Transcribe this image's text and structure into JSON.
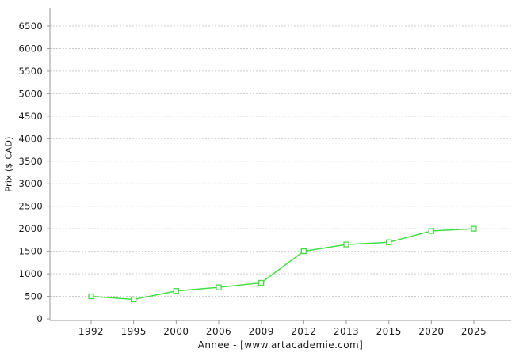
{
  "chart_data": {
    "type": "line",
    "categories": [
      "1992",
      "1995",
      "2000",
      "2006",
      "2009",
      "2012",
      "2013",
      "2015",
      "2020",
      "2025"
    ],
    "series": [
      {
        "name": "Prix",
        "values": [
          500,
          430,
          620,
          700,
          800,
          1500,
          1650,
          1700,
          1950,
          2000
        ]
      }
    ],
    "title": "",
    "xlabel": "Annee - [www.artacademie.com]",
    "ylabel": "Prix ($ CAD)",
    "ylim": [
      0,
      6750
    ],
    "ytick_min": 0,
    "ytick_max": 6500,
    "ytick_step": 500,
    "grid": "horizontal-dotted",
    "legend_position": "none",
    "marker": "open-square",
    "colors": {
      "line": "#44dd44",
      "marker_fill": "#ffffff",
      "grid": "#cccccc",
      "axis": "#999999",
      "tick": "#999999",
      "text": "#1a1a1a",
      "background": "#ffffff"
    }
  }
}
